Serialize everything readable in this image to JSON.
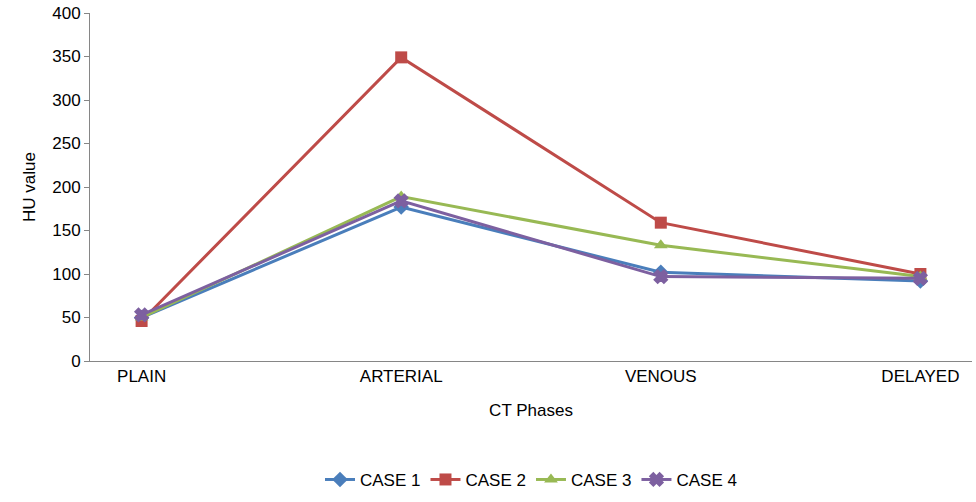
{
  "chart_data": {
    "type": "line",
    "x_label": "CT Phases",
    "y_label": "HU value",
    "categories": [
      "PLAIN",
      "ARTERIAL",
      "VENOUS",
      "DELAYED"
    ],
    "series": [
      {
        "name": "CASE 1",
        "color": "#4a7ebb",
        "marker": "diamond",
        "values": [
          50,
          177,
          102,
          92
        ]
      },
      {
        "name": "CASE 2",
        "color": "#be4b48",
        "marker": "square",
        "values": [
          46,
          349,
          159,
          100
        ]
      },
      {
        "name": "CASE 3",
        "color": "#98b954",
        "marker": "triangle",
        "values": [
          50,
          189,
          133,
          97
        ]
      },
      {
        "name": "CASE 4",
        "color": "#7d60a0",
        "marker": "x",
        "values": [
          53,
          184,
          97,
          95
        ]
      }
    ],
    "ylim": [
      0,
      400
    ],
    "yticks": [
      0,
      50,
      100,
      150,
      200,
      250,
      300,
      350,
      400
    ],
    "grid": false,
    "legend": "bottom"
  }
}
